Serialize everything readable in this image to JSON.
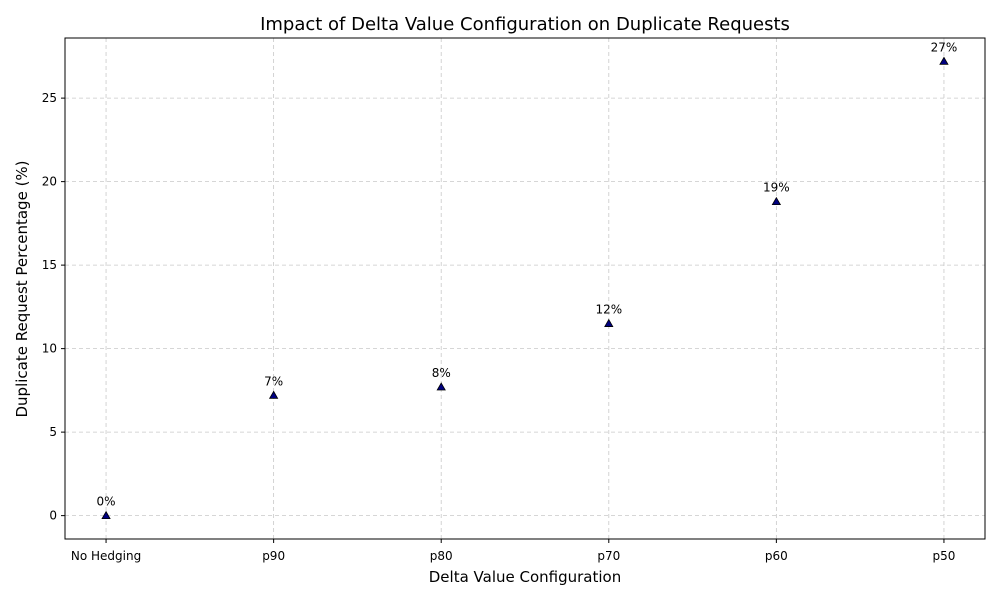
{
  "chart_data": {
    "type": "scatter",
    "title": "Impact of Delta Value Configuration on Duplicate Requests",
    "x_label": "Delta Value Configuration",
    "y_label": "Duplicate Request Percentage (%)",
    "categories": [
      "No Hedging",
      "p90",
      "p80",
      "p70",
      "p60",
      "p50"
    ],
    "values": [
      0,
      7.2,
      7.7,
      11.5,
      18.8,
      27.2
    ],
    "value_labels": [
      "0%",
      "7%",
      "8%",
      "12%",
      "19%",
      "27%"
    ],
    "color": "#000080",
    "marker": "triangle",
    "ylim": [
      -1.4,
      28.6
    ],
    "yticks": [
      0,
      5,
      10,
      15,
      20,
      25
    ],
    "grid": true
  }
}
